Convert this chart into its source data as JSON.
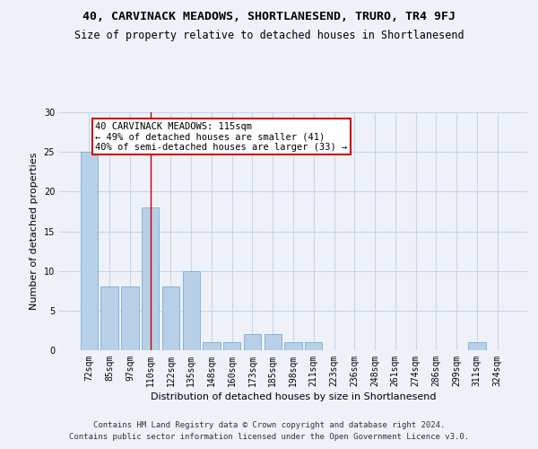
{
  "title1": "40, CARVINACK MEADOWS, SHORTLANESEND, TRURO, TR4 9FJ",
  "title2": "Size of property relative to detached houses in Shortlanesend",
  "xlabel": "Distribution of detached houses by size in Shortlanesend",
  "ylabel": "Number of detached properties",
  "categories": [
    "72sqm",
    "85sqm",
    "97sqm",
    "110sqm",
    "122sqm",
    "135sqm",
    "148sqm",
    "160sqm",
    "173sqm",
    "185sqm",
    "198sqm",
    "211sqm",
    "223sqm",
    "236sqm",
    "248sqm",
    "261sqm",
    "274sqm",
    "286sqm",
    "299sqm",
    "311sqm",
    "324sqm"
  ],
  "values": [
    25,
    8,
    8,
    18,
    8,
    10,
    1,
    1,
    2,
    2,
    1,
    1,
    0,
    0,
    0,
    0,
    0,
    0,
    0,
    1,
    0
  ],
  "bar_color": "#b8cfe8",
  "bar_edge_color": "#7aadd4",
  "grid_color": "#c8d4e8",
  "annotation_text": "40 CARVINACK MEADOWS: 115sqm\n← 49% of detached houses are smaller (41)\n40% of semi-detached houses are larger (33) →",
  "annotation_box_color": "#ffffff",
  "annotation_box_edge": "#cc0000",
  "vline_x_index": 3,
  "vline_color": "#cc0000",
  "ylim": [
    0,
    30
  ],
  "yticks": [
    0,
    5,
    10,
    15,
    20,
    25,
    30
  ],
  "footer1": "Contains HM Land Registry data © Crown copyright and database right 2024.",
  "footer2": "Contains public sector information licensed under the Open Government Licence v3.0.",
  "bg_color": "#eef2f8",
  "plot_bg_color": "#eef2f8",
  "title1_fontsize": 9.5,
  "title2_fontsize": 8.5,
  "xlabel_fontsize": 8,
  "ylabel_fontsize": 8,
  "tick_fontsize": 7,
  "annotation_fontsize": 7.5,
  "footer_fontsize": 6.5
}
